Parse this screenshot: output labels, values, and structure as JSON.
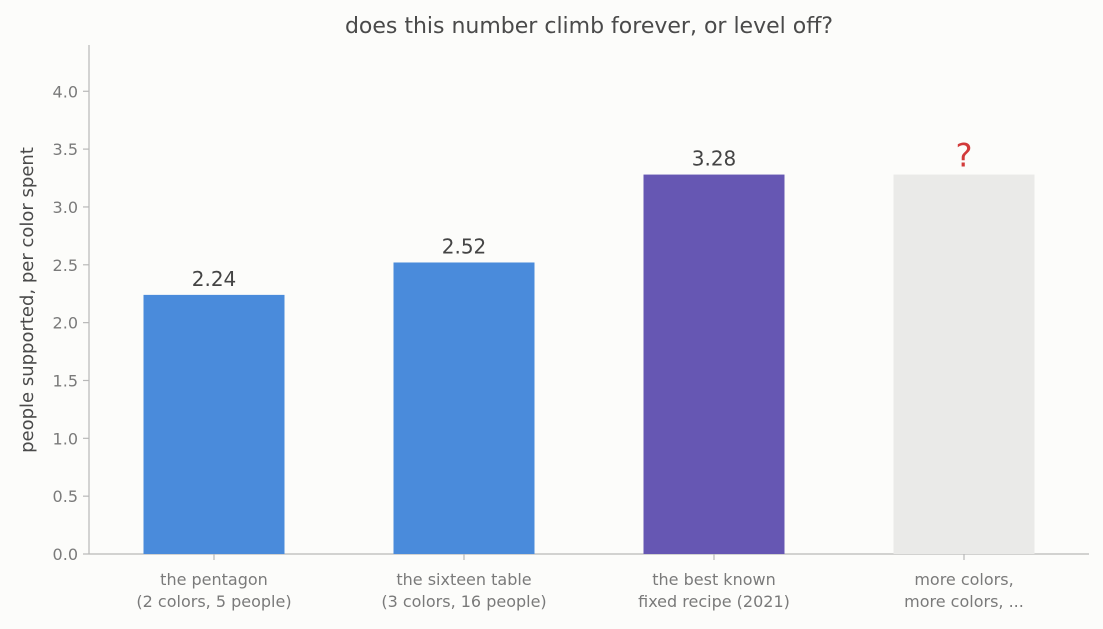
{
  "chart_data": {
    "type": "bar",
    "title": "does this number climb forever, or level off?",
    "xlabel": "",
    "ylabel": "people supported, per color spent",
    "ylim": [
      0,
      4.4
    ],
    "yticks": [
      "0.0",
      "0.5",
      "1.0",
      "1.5",
      "2.0",
      "2.5",
      "3.0",
      "3.5",
      "4.0"
    ],
    "grid": false,
    "categories": [
      {
        "lines": [
          "the pentagon",
          "(2 colors, 5 people)"
        ]
      },
      {
        "lines": [
          "the sixteen table",
          "(3 colors, 16 people)"
        ]
      },
      {
        "lines": [
          "the best known",
          "fixed recipe (2021)"
        ]
      },
      {
        "lines": [
          "more colors,",
          "more colors, ..."
        ]
      }
    ],
    "values": [
      2.24,
      2.52,
      3.28,
      3.28
    ],
    "data_labels": [
      "2.24",
      "2.52",
      "3.28",
      "?"
    ],
    "colors": [
      "#4a8bdb",
      "#4a8bdb",
      "#6657b3",
      "#eaeae8"
    ],
    "label_colors": [
      "#444444",
      "#444444",
      "#444444",
      "#d23a3a"
    ]
  }
}
